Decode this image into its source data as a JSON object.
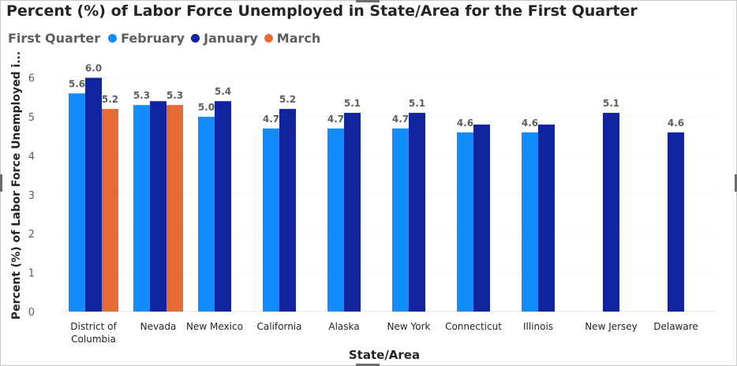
{
  "chart_data": {
    "type": "bar",
    "title": "Percent (%) of Labor Force Unemployed in State/Area for the First Quarter",
    "xlabel": "State/Area",
    "ylabel": "Percent (%) of Labor Force Unemployed i...",
    "legend_title": "First Quarter",
    "legend_position": "top-left",
    "ylim": [
      0,
      6.6
    ],
    "yticks": [
      "0",
      "1",
      "2",
      "3",
      "4",
      "5",
      "6"
    ],
    "grid": true,
    "categories": [
      "District of Columbia",
      "Nevada",
      "New Mexico",
      "California",
      "Alaska",
      "New York",
      "Connecticut",
      "Illinois",
      "New Jersey",
      "Delaware"
    ],
    "category_labels": [
      [
        "District of",
        "Columbia"
      ],
      [
        "Nevada"
      ],
      [
        "New Mexico"
      ],
      [
        "California"
      ],
      [
        "Alaska"
      ],
      [
        "New York"
      ],
      [
        "Connecticut"
      ],
      [
        "Illinois"
      ],
      [
        "New Jersey"
      ],
      [
        "Delaware"
      ]
    ],
    "series": [
      {
        "name": "February",
        "color": "#118dff",
        "values": [
          5.6,
          5.3,
          5.0,
          4.7,
          4.7,
          4.7,
          4.6,
          4.6,
          null,
          null
        ],
        "labels": [
          "5.6",
          "5.3",
          "5.0",
          "4.7",
          "4.7",
          "4.7",
          "4.6",
          "4.6",
          null,
          null
        ]
      },
      {
        "name": "January",
        "color": "#12239e",
        "values": [
          6.0,
          5.4,
          5.4,
          5.2,
          5.1,
          5.1,
          4.8,
          4.8,
          5.1,
          4.6
        ],
        "labels": [
          "6.0",
          null,
          "5.4",
          "5.2",
          "5.1",
          "5.1",
          null,
          null,
          "5.1",
          "4.6"
        ]
      },
      {
        "name": "March",
        "color": "#e66c37",
        "values": [
          5.2,
          5.3,
          null,
          null,
          null,
          null,
          null,
          null,
          null,
          null
        ],
        "labels": [
          "5.2",
          "5.3",
          null,
          null,
          null,
          null,
          null,
          null,
          null,
          null
        ]
      }
    ]
  }
}
